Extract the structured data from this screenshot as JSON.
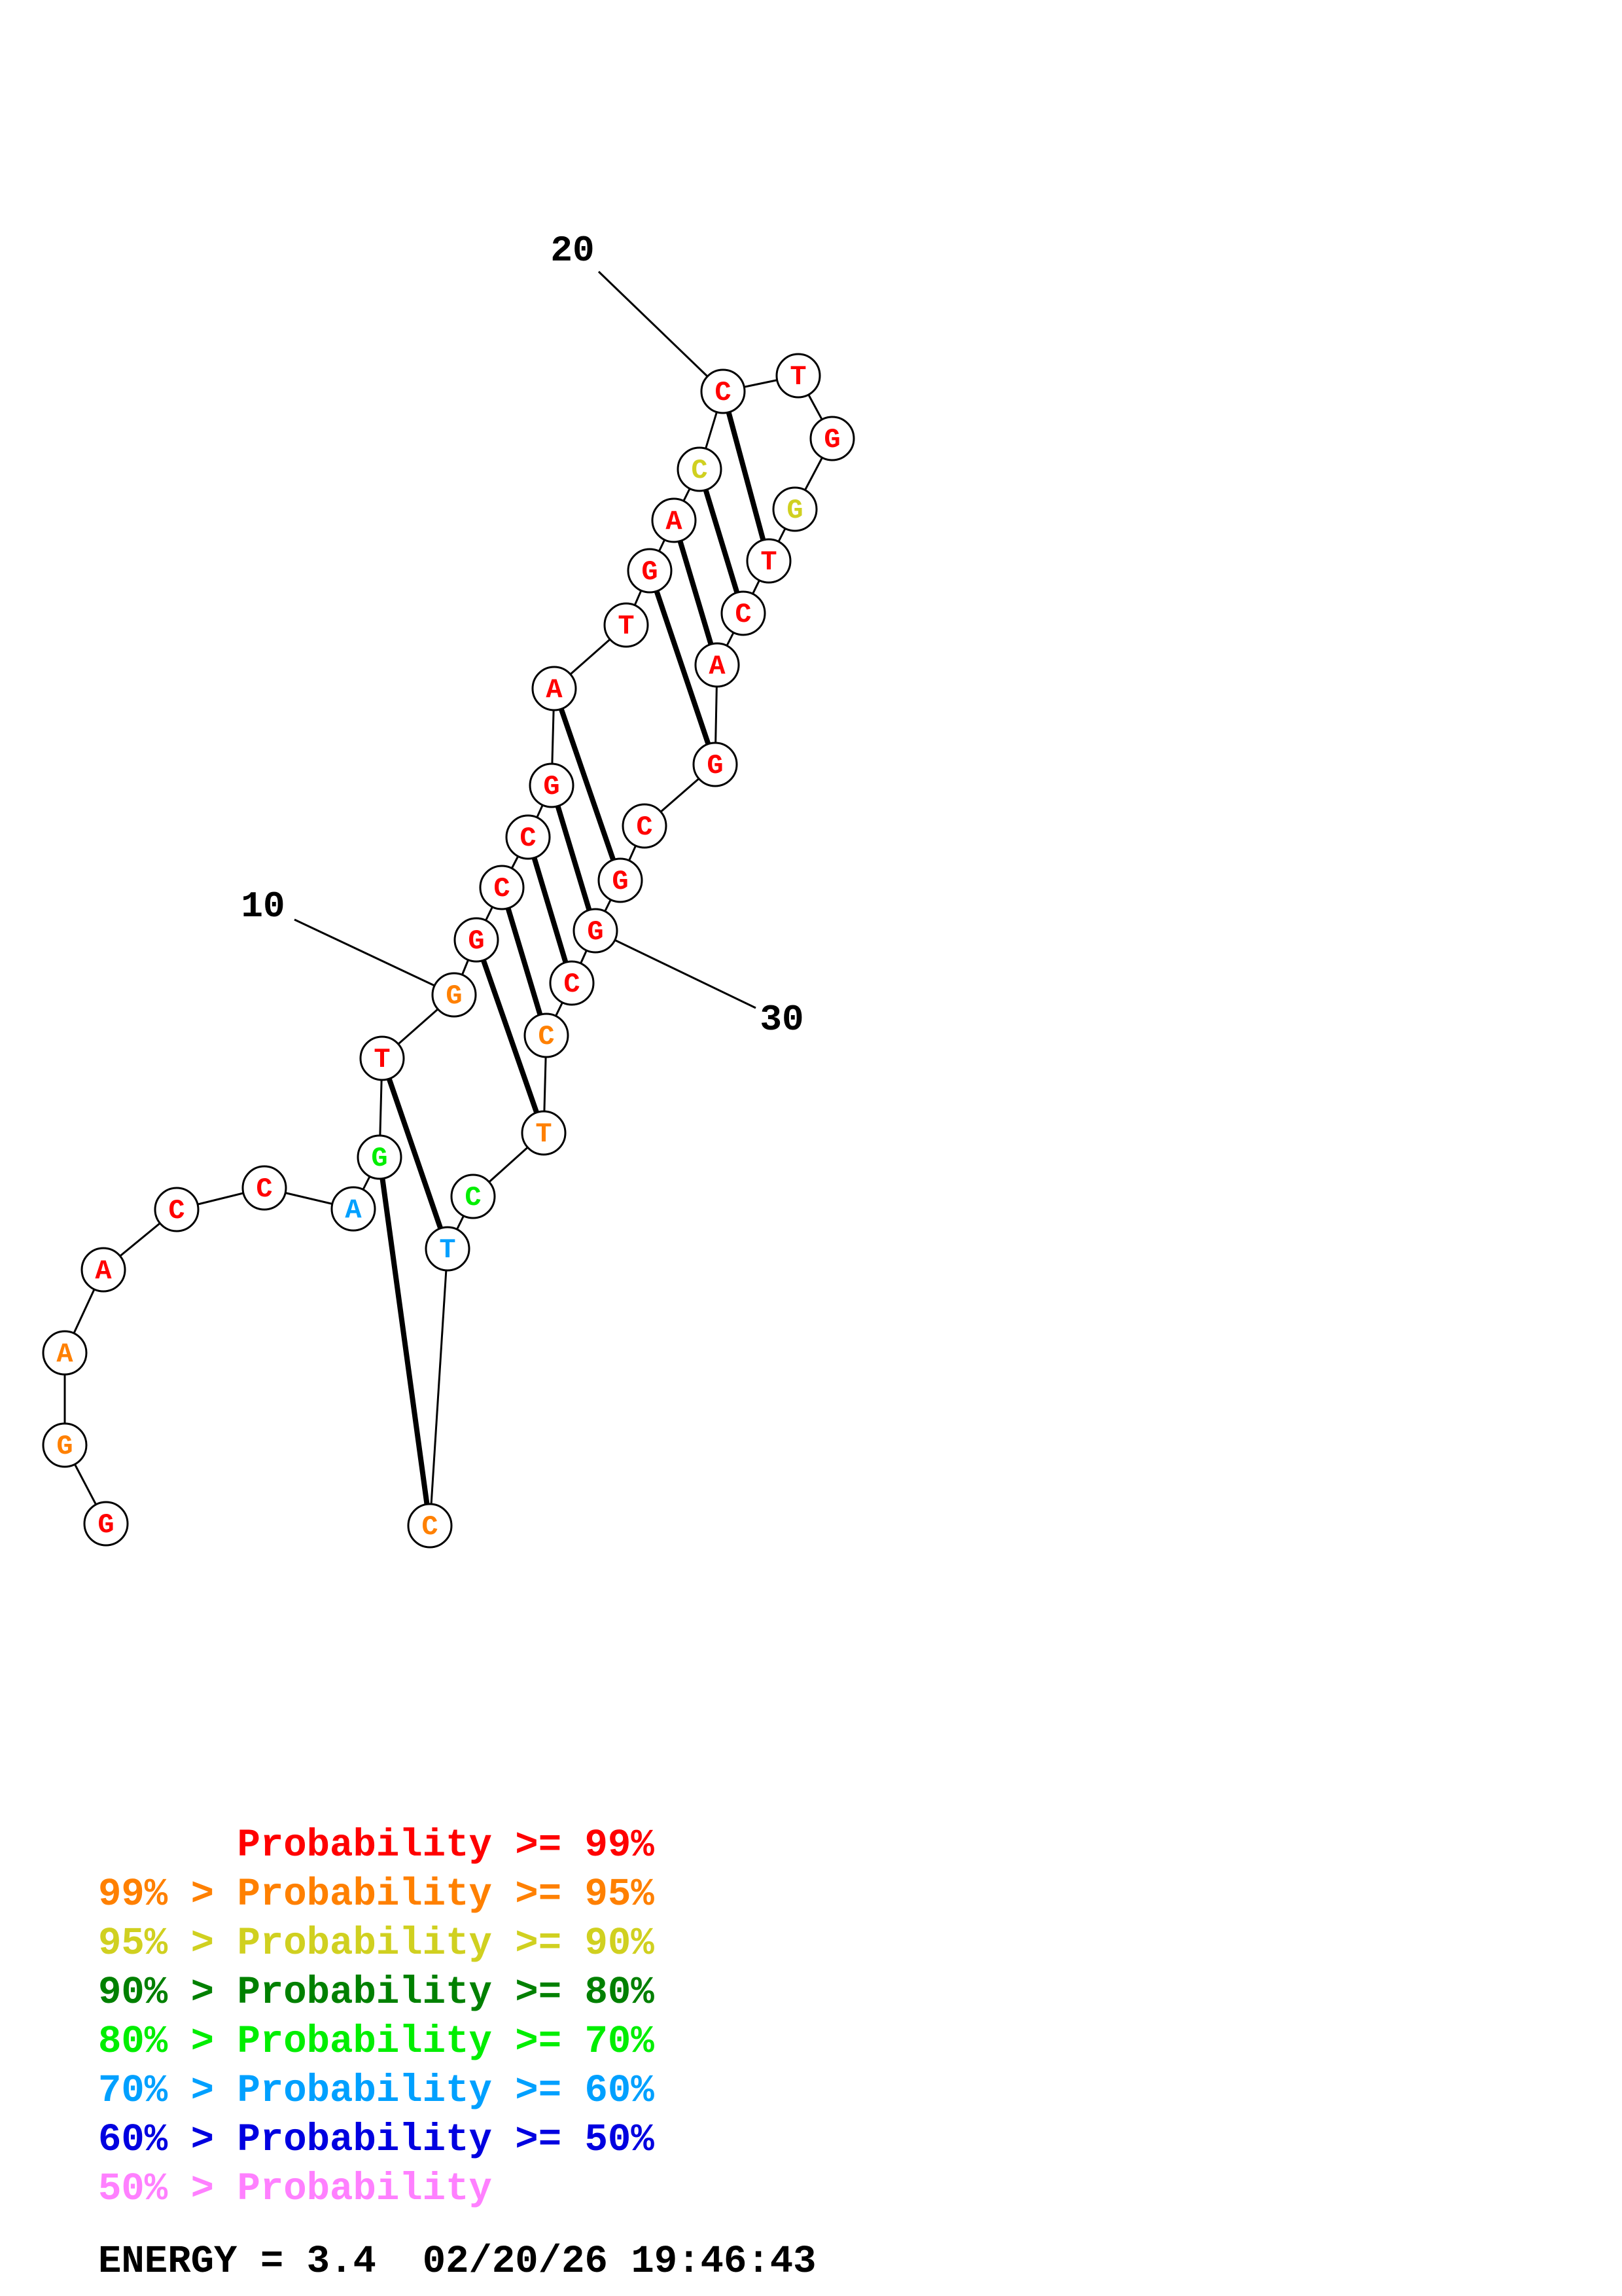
{
  "structure": {
    "sequence": [
      "G",
      "G",
      "A",
      "A",
      "C",
      "C",
      "A",
      "G",
      "T",
      "G",
      "G",
      "C",
      "C",
      "G",
      "A",
      "T",
      "G",
      "A",
      "C",
      "C",
      "T",
      "G",
      "G",
      "T",
      "C",
      "A",
      "G",
      "C",
      "G",
      "G",
      "C",
      "C",
      "T",
      "C",
      "T",
      "C"
    ],
    "probability_class": [
      0,
      1,
      1,
      0,
      0,
      0,
      5,
      4,
      0,
      1,
      0,
      0,
      0,
      0,
      0,
      0,
      0,
      0,
      2,
      0,
      0,
      0,
      2,
      0,
      0,
      0,
      0,
      0,
      0,
      0,
      0,
      1,
      1,
      4,
      5,
      1
    ],
    "pairs": [
      [
        7,
        35
      ],
      [
        8,
        34
      ],
      [
        10,
        32
      ],
      [
        11,
        31
      ],
      [
        12,
        30
      ],
      [
        13,
        29
      ],
      [
        14,
        28
      ],
      [
        16,
        26
      ],
      [
        17,
        25
      ],
      [
        18,
        24
      ],
      [
        19,
        23
      ]
    ],
    "position_labels": [
      {
        "index": 10,
        "text": "10"
      },
      {
        "index": 20,
        "text": "20"
      },
      {
        "index": 30,
        "text": "30"
      }
    ]
  },
  "colors": {
    "prob_ge_99": "#ff0000",
    "prob_95_99": "#ff8000",
    "prob_90_95": "#d0d020",
    "prob_80_90": "#008000",
    "prob_70_80": "#00ee00",
    "prob_60_70": "#00a0ff",
    "prob_50_60": "#0000e0",
    "prob_lt_50": "#ff80ff"
  },
  "legend": [
    {
      "prefix": "",
      "text": "Probability >= 99%",
      "color_key": "prob_ge_99"
    },
    {
      "prefix": "99% > ",
      "text": "Probability >= 95%",
      "color_key": "prob_95_99"
    },
    {
      "prefix": "95% > ",
      "text": "Probability >= 90%",
      "color_key": "prob_90_95"
    },
    {
      "prefix": "90% > ",
      "text": "Probability >= 80%",
      "color_key": "prob_80_90"
    },
    {
      "prefix": "80% > ",
      "text": "Probability >= 70%",
      "color_key": "prob_70_80"
    },
    {
      "prefix": "70% > ",
      "text": "Probability >= 60%",
      "color_key": "prob_60_70"
    },
    {
      "prefix": "60% > ",
      "text": "Probability >= 50%",
      "color_key": "prob_50_60"
    },
    {
      "prefix": "50% > ",
      "text": "Probability",
      "color_key": "prob_lt_50"
    }
  ],
  "footer": {
    "energy_text": "ENERGY = 3.4",
    "timestamp": "02/20/26 19:46:43"
  }
}
